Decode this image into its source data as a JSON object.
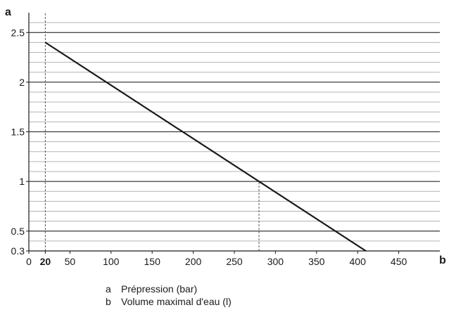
{
  "chart_data": {
    "type": "line",
    "x_axis_letter": "a",
    "y_axis_letter": "b",
    "x_axis_name": "b",
    "y_axis_name": "a",
    "xlim": [
      0,
      500
    ],
    "ylim": [
      0.3,
      2.7
    ],
    "x_ticks": [
      {
        "value": 0,
        "label": "0",
        "bold": false
      },
      {
        "value": 20,
        "label": "20",
        "bold": true
      },
      {
        "value": 50,
        "label": "50",
        "bold": false
      },
      {
        "value": 100,
        "label": "100",
        "bold": false
      },
      {
        "value": 150,
        "label": "150",
        "bold": false
      },
      {
        "value": 200,
        "label": "200",
        "bold": false
      },
      {
        "value": 250,
        "label": "250",
        "bold": false
      },
      {
        "value": 300,
        "label": "300",
        "bold": false
      },
      {
        "value": 350,
        "label": "350",
        "bold": false
      },
      {
        "value": 400,
        "label": "400",
        "bold": false
      },
      {
        "value": 450,
        "label": "450",
        "bold": false
      }
    ],
    "y_ticks": [
      {
        "value": 0.3,
        "label": "0.3"
      },
      {
        "value": 0.5,
        "label": "0.5"
      },
      {
        "value": 1,
        "label": "1"
      },
      {
        "value": 1.5,
        "label": "1.5"
      },
      {
        "value": 2,
        "label": "2"
      },
      {
        "value": 2.5,
        "label": "2.5"
      }
    ],
    "major_grid_y": [
      0.5,
      1,
      1.5,
      2,
      2.5
    ],
    "minor_grid_step": 0.1,
    "grid": true,
    "series": [
      {
        "x": [
          20,
          410
        ],
        "y": [
          2.4,
          0.3
        ]
      }
    ],
    "reference_lines": [
      {
        "orientation": "vertical",
        "x": 20,
        "y_from": 0.3,
        "y_to": 2.7,
        "style": "dashed"
      },
      {
        "orientation": "vertical",
        "x": 280,
        "y_from": 0.3,
        "y_to": 1.0,
        "style": "dashed"
      }
    ]
  },
  "legend": [
    {
      "key": "a",
      "text": "Prépression (bar)"
    },
    {
      "key": "b",
      "text": "Volume maximal d'eau (l)"
    }
  ],
  "colors": {
    "line": "#1a1a1a",
    "major_grid": "#1a1a1a",
    "minor_grid": "#b3b3b3",
    "reference": "#555555"
  }
}
